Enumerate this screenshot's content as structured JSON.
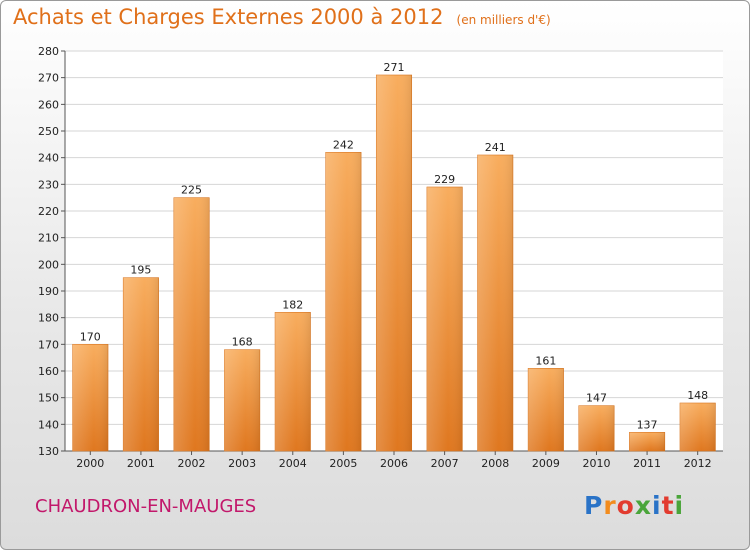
{
  "header": {
    "title": "Achats et Charges Externes 2000 à 2012",
    "unit": "(en milliers d'€)"
  },
  "footer": {
    "commune": "CHAUDRON-EN-MAUGES",
    "logo_text": "Proxiti"
  },
  "colors": {
    "title": "#e0701a",
    "commune": "#c2186b",
    "bar_light": "#f6a858",
    "bar_dark": "#e07822",
    "logo_letters": [
      "#2a73c7",
      "#f28c1e",
      "#e23b2f",
      "#4aa53a",
      "#2a73c7",
      "#e23b2f",
      "#4aa53a"
    ]
  },
  "chart_data": {
    "type": "bar",
    "categories": [
      "2000",
      "2001",
      "2002",
      "2003",
      "2004",
      "2005",
      "2006",
      "2007",
      "2008",
      "2009",
      "2010",
      "2011",
      "2012"
    ],
    "values": [
      170,
      195,
      225,
      168,
      182,
      242,
      271,
      229,
      241,
      161,
      147,
      137,
      148
    ],
    "ylim": [
      130,
      280
    ],
    "yticks": [
      130,
      140,
      150,
      160,
      170,
      180,
      190,
      200,
      210,
      220,
      230,
      240,
      250,
      260,
      270,
      280
    ],
    "grid": true,
    "legend": "none"
  }
}
